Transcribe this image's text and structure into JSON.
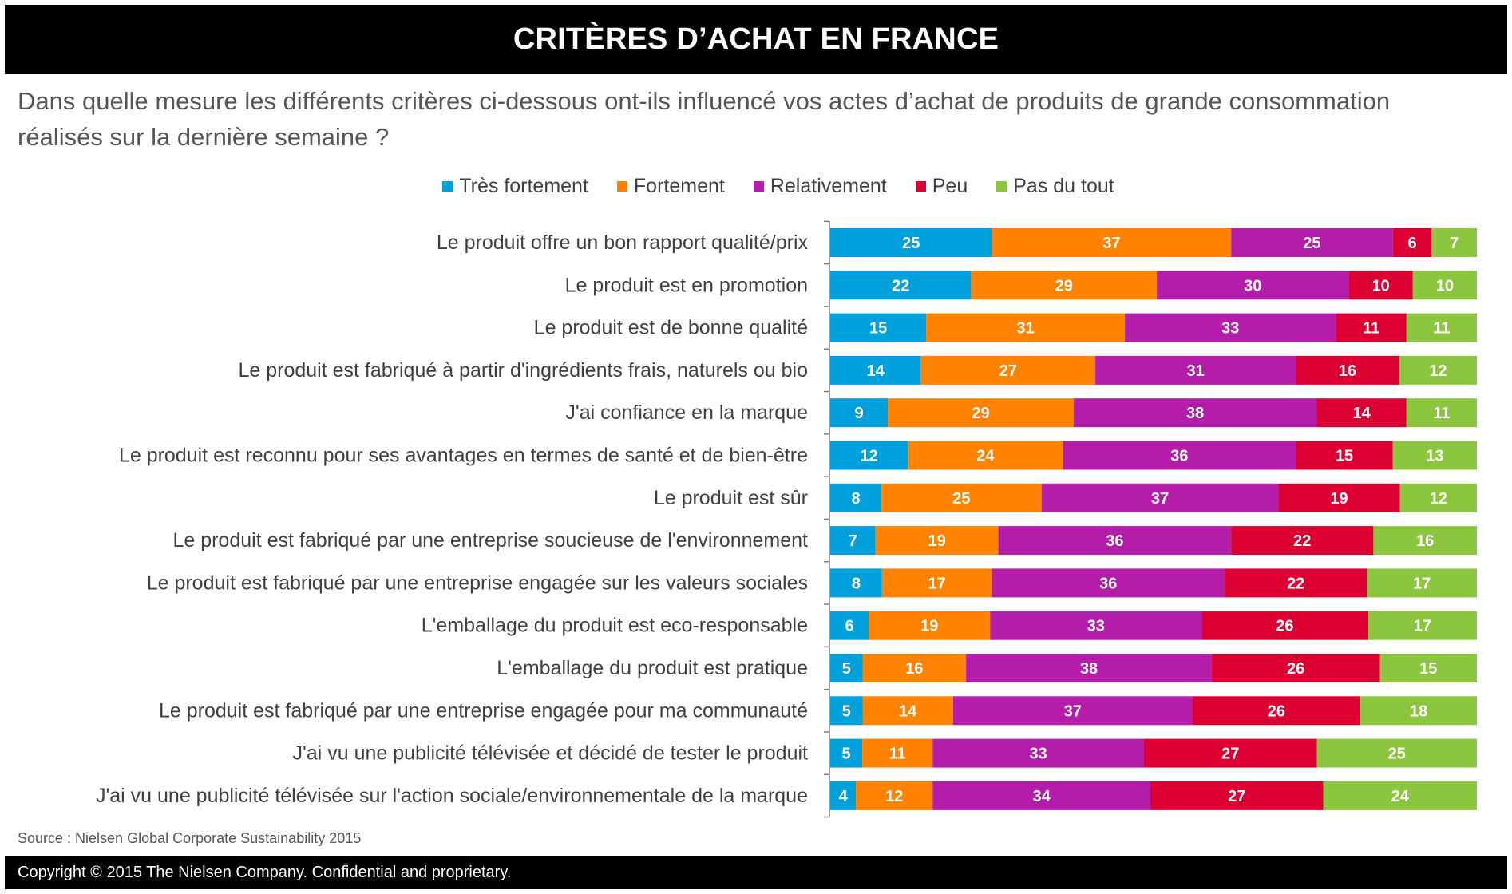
{
  "header": {
    "title": "CRITÈRES D’ACHAT EN FRANCE",
    "question": "Dans quelle mesure les différents critères ci-dessous ont-ils influencé vos actes d’achat de produits de grande consommation réalisés sur la dernière semaine ?"
  },
  "footer": {
    "source": "Source : Nielsen Global Corporate Sustainability 2015",
    "copyright": "Copyright © 2015 The Nielsen Company. Confidential and proprietary."
  },
  "chart_data": {
    "type": "bar",
    "orientation": "horizontal",
    "stacked": true,
    "legend_position": "top",
    "grid": false,
    "categories": [
      "Le produit offre un bon rapport qualité/prix",
      "Le produit est en promotion",
      "Le produit est de bonne qualité",
      "Le produit est fabriqué à partir d'ingrédients frais, naturels ou bio",
      "J'ai confiance en la marque",
      "Le produit est reconnu pour ses avantages en termes de santé et de bien-être",
      "Le produit est sûr",
      "Le produit est fabriqué par une entreprise soucieuse de l'environnement",
      "Le produit est fabriqué par une entreprise engagée sur les valeurs sociales",
      "L'emballage du produit est eco-responsable",
      "L'emballage du produit est pratique",
      "Le produit est fabriqué par une entreprise engagée pour ma communauté",
      "J'ai vu une publicité télévisée et décidé de tester le produit",
      "J'ai vu une publicité télévisée sur l'action sociale/environnementale de la marque"
    ],
    "series": [
      {
        "name": "Très fortement",
        "color": "#00A0DC",
        "values": [
          25,
          22,
          15,
          14,
          9,
          12,
          8,
          7,
          8,
          6,
          5,
          5,
          5,
          4
        ]
      },
      {
        "name": "Fortement",
        "color": "#FF8200",
        "values": [
          37,
          29,
          31,
          27,
          29,
          24,
          25,
          19,
          17,
          19,
          16,
          14,
          11,
          12
        ]
      },
      {
        "name": "Relativement",
        "color": "#B41CAA",
        "values": [
          25,
          30,
          33,
          31,
          38,
          36,
          37,
          36,
          36,
          33,
          38,
          37,
          33,
          34
        ]
      },
      {
        "name": "Peu",
        "color": "#DC0032",
        "values": [
          6,
          10,
          11,
          16,
          14,
          15,
          19,
          22,
          22,
          26,
          26,
          26,
          27,
          27
        ]
      },
      {
        "name": "Pas du tout",
        "color": "#8CC63F",
        "values": [
          7,
          10,
          11,
          12,
          11,
          13,
          12,
          16,
          17,
          17,
          15,
          18,
          25,
          24
        ]
      }
    ]
  }
}
